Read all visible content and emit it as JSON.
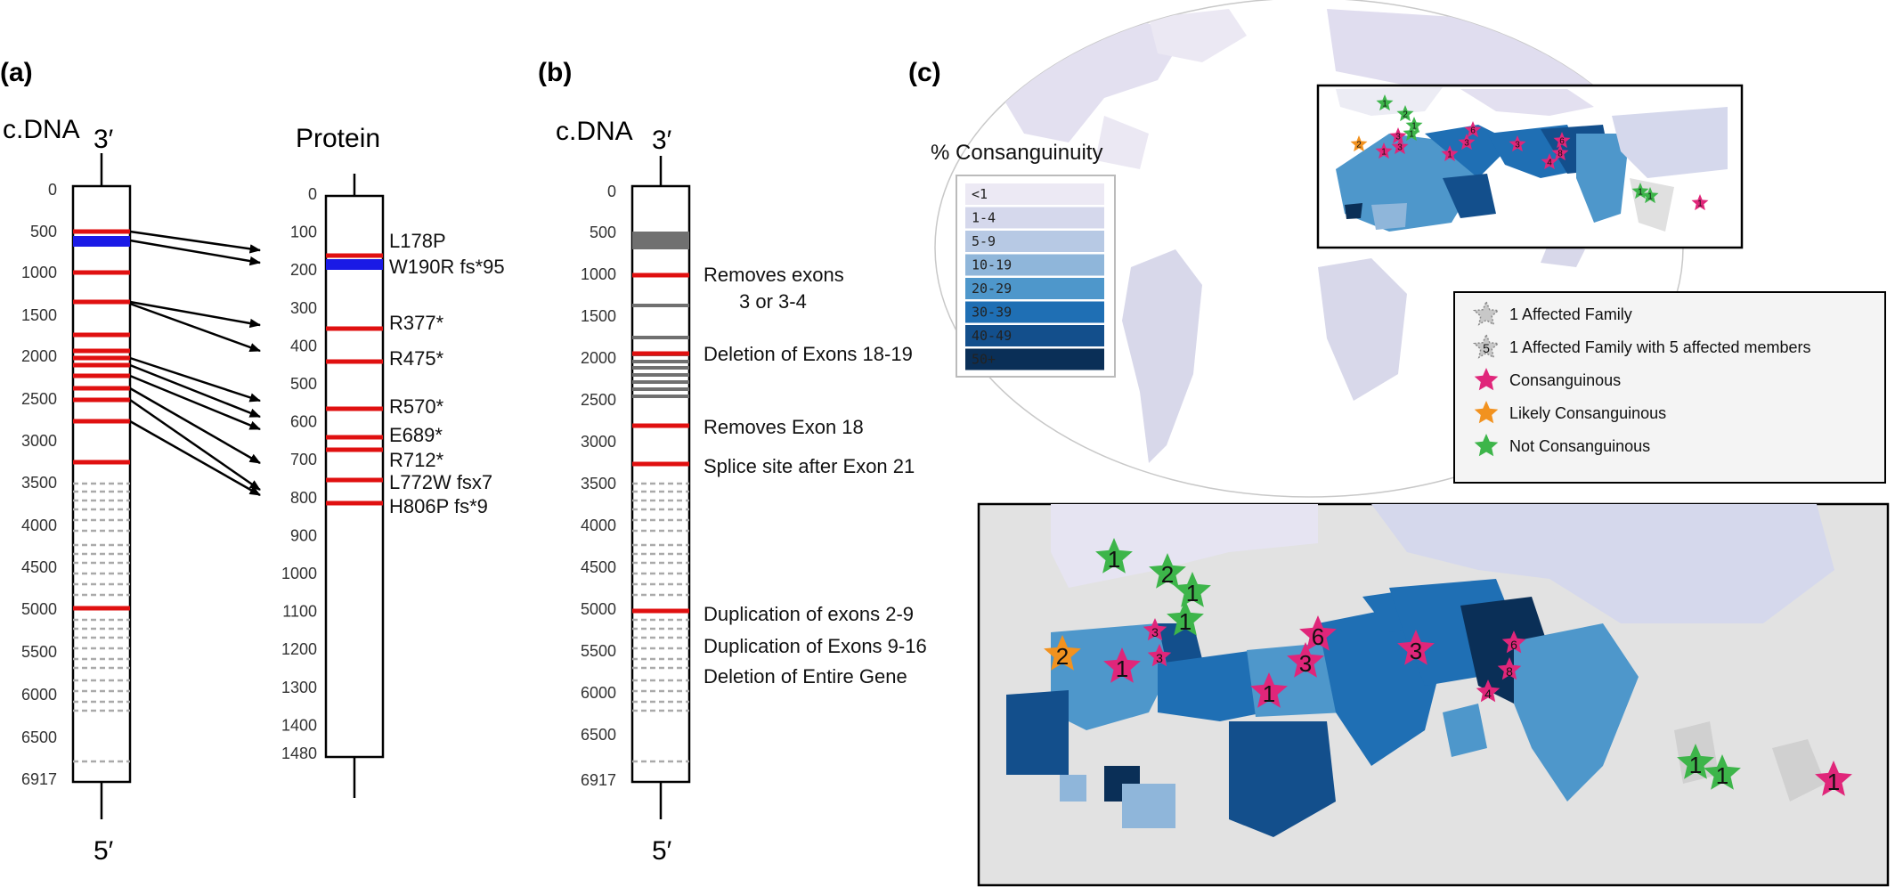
{
  "panels": {
    "a": {
      "label": "(a)",
      "cdna_title": "c.DNA",
      "three_prime": "3′",
      "five_prime": "5′",
      "cdna_ticks": [
        "0",
        "500",
        "1000",
        "1500",
        "2000",
        "2500",
        "3000",
        "3500",
        "4000",
        "4500",
        "5000",
        "5500",
        "6000",
        "6500",
        "6917"
      ],
      "protein_title": "Protein",
      "protein_ticks": [
        "0",
        "100",
        "200",
        "300",
        "400",
        "500",
        "600",
        "700",
        "800",
        "900",
        "1000",
        "1100",
        "1200",
        "1300",
        "1400",
        "1480"
      ],
      "mutations": [
        {
          "label": "L178P",
          "color": "#000000"
        },
        {
          "label": "W190R fs*95",
          "color": "#1a1ae6"
        },
        {
          "label": "R377*",
          "color": "#000000"
        },
        {
          "label": "R475*",
          "color": "#000000"
        },
        {
          "label": "R570*",
          "color": "#000000"
        },
        {
          "label": "E689*",
          "color": "#000000"
        },
        {
          "label": "R712*",
          "color": "#000000"
        },
        {
          "label": "L772W fsx7",
          "color": "#000000"
        },
        {
          "label": "H806P fs*9",
          "color": "#000000"
        }
      ]
    },
    "b": {
      "label": "(b)",
      "cdna_title": "c.DNA",
      "three_prime": "3′",
      "five_prime": "5′",
      "annotations": [
        "Removes exons",
        "3 or 3-4",
        "Deletion of Exons 18-19",
        "Removes Exon 18",
        "Splice site after Exon 21",
        "Duplication of exons 2-9",
        "Duplication of Exons 9-16",
        "Deletion of Entire Gene"
      ]
    },
    "c": {
      "label": "(c)",
      "legend_title": "% Consanguinuity",
      "swatches": [
        {
          "label": "<1",
          "color": "#ece9f4"
        },
        {
          "label": "1-4",
          "color": "#d5d8ec"
        },
        {
          "label": "5-9",
          "color": "#b7c9e4"
        },
        {
          "label": "10-19",
          "color": "#8fb6da"
        },
        {
          "label": "20-29",
          "color": "#4e97cb"
        },
        {
          "label": "30-39",
          "color": "#1f6fb4"
        },
        {
          "label": "40-49",
          "color": "#134f8c"
        },
        {
          "label": "50+",
          "color": "#0a2f57"
        }
      ],
      "star_legend": [
        {
          "label": "1 Affected Family",
          "color": "#c8c8c8",
          "num": ""
        },
        {
          "label": "1 Affected Family with 5 affected members",
          "color": "#c8c8c8",
          "num": "5"
        },
        {
          "label": "Consanguinous",
          "color": "#e0267a",
          "num": ""
        },
        {
          "label": "Likely Consanguinous",
          "color": "#f2921f",
          "num": ""
        },
        {
          "label": "Not Consanguinous",
          "color": "#3db54a",
          "num": ""
        }
      ],
      "zoom_stars": [
        {
          "num": "1",
          "color": "#3db54a"
        },
        {
          "num": "2",
          "color": "#3db54a"
        },
        {
          "num": "1",
          "color": "#3db54a"
        },
        {
          "num": "1",
          "color": "#3db54a"
        },
        {
          "num": "2",
          "color": "#f2921f"
        },
        {
          "num": "1",
          "color": "#e0267a"
        },
        {
          "num": "3",
          "color": "#e0267a"
        },
        {
          "num": "3",
          "color": "#e0267a"
        },
        {
          "num": "1",
          "color": "#e0267a"
        },
        {
          "num": "6",
          "color": "#e0267a"
        },
        {
          "num": "3",
          "color": "#e0267a"
        },
        {
          "num": "3",
          "color": "#e0267a"
        },
        {
          "num": "6",
          "color": "#e0267a"
        },
        {
          "num": "8",
          "color": "#e0267a"
        },
        {
          "num": "4",
          "color": "#e0267a"
        },
        {
          "num": "1",
          "color": "#3db54a"
        },
        {
          "num": "1",
          "color": "#3db54a"
        },
        {
          "num": "1",
          "color": "#e0267a"
        }
      ]
    }
  }
}
